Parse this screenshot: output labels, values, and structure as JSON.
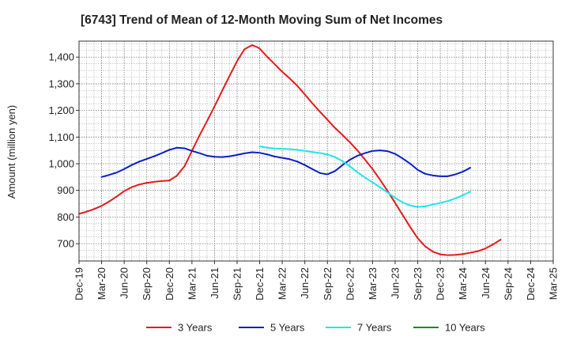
{
  "chart_data": {
    "type": "line",
    "title": "[6743]  Trend of Mean of 12-Month Moving Sum of Net Incomes",
    "ylabel": "Amount (million yen)",
    "xlabel": "",
    "ylim": [
      635,
      1460
    ],
    "yticks": [
      700,
      800,
      900,
      1000,
      1100,
      1200,
      1300,
      1400
    ],
    "ytick_labels": [
      "700",
      "800",
      "900",
      "1,000",
      "1,100",
      "1,200",
      "1,300",
      "1,400"
    ],
    "x_categories": [
      "Dec-19",
      "Mar-20",
      "Jun-20",
      "Sep-20",
      "Dec-20",
      "Mar-21",
      "Jun-21",
      "Sep-21",
      "Dec-21",
      "Mar-22",
      "Jun-22",
      "Sep-22",
      "Dec-22",
      "Mar-23",
      "Jun-23",
      "Sep-23",
      "Dec-23",
      "Mar-24",
      "Jun-24",
      "Sep-24",
      "Dec-24",
      "Mar-25"
    ],
    "grid": true,
    "legend_position": "bottom",
    "series": [
      {
        "name": "3 Years",
        "color": "#e41a1c",
        "values": [
          [
            0,
            812
          ],
          [
            0.33,
            820
          ],
          [
            0.67,
            830
          ],
          [
            1,
            842
          ],
          [
            1.33,
            858
          ],
          [
            1.67,
            877
          ],
          [
            2,
            897
          ],
          [
            2.33,
            912
          ],
          [
            2.67,
            922
          ],
          [
            3,
            928
          ],
          [
            3.33,
            932
          ],
          [
            3.67,
            935
          ],
          [
            4,
            937
          ],
          [
            4.33,
            955
          ],
          [
            4.67,
            990
          ],
          [
            5,
            1048
          ],
          [
            5.33,
            1105
          ],
          [
            5.67,
            1160
          ],
          [
            6,
            1215
          ],
          [
            6.33,
            1272
          ],
          [
            6.67,
            1330
          ],
          [
            7,
            1385
          ],
          [
            7.33,
            1430
          ],
          [
            7.67,
            1445
          ],
          [
            7.9,
            1437
          ],
          [
            8,
            1432
          ],
          [
            8.33,
            1402
          ],
          [
            8.67,
            1373
          ],
          [
            9,
            1345
          ],
          [
            9.33,
            1320
          ],
          [
            9.67,
            1292
          ],
          [
            10,
            1260
          ],
          [
            10.33,
            1227
          ],
          [
            10.67,
            1195
          ],
          [
            11,
            1165
          ],
          [
            11.33,
            1135
          ],
          [
            11.67,
            1108
          ],
          [
            12,
            1080
          ],
          [
            12.33,
            1050
          ],
          [
            12.67,
            1015
          ],
          [
            13,
            980
          ],
          [
            13.33,
            940
          ],
          [
            13.67,
            897
          ],
          [
            14,
            853
          ],
          [
            14.33,
            808
          ],
          [
            14.67,
            762
          ],
          [
            15,
            720
          ],
          [
            15.33,
            690
          ],
          [
            15.67,
            670
          ],
          [
            16,
            660
          ],
          [
            16.33,
            657
          ],
          [
            16.67,
            658
          ],
          [
            17,
            661
          ],
          [
            17.33,
            666
          ],
          [
            17.67,
            672
          ],
          [
            18,
            682
          ],
          [
            18.33,
            697
          ],
          [
            18.67,
            715
          ]
        ]
      },
      {
        "name": "5 Years",
        "color": "#0a1ec8",
        "values": [
          [
            1,
            950
          ],
          [
            1.33,
            958
          ],
          [
            1.67,
            967
          ],
          [
            2,
            980
          ],
          [
            2.33,
            995
          ],
          [
            2.67,
            1008
          ],
          [
            3,
            1018
          ],
          [
            3.33,
            1028
          ],
          [
            3.67,
            1040
          ],
          [
            4,
            1052
          ],
          [
            4.33,
            1060
          ],
          [
            4.67,
            1058
          ],
          [
            5,
            1048
          ],
          [
            5.33,
            1040
          ],
          [
            5.67,
            1030
          ],
          [
            6,
            1026
          ],
          [
            6.33,
            1025
          ],
          [
            6.67,
            1028
          ],
          [
            7,
            1033
          ],
          [
            7.33,
            1039
          ],
          [
            7.67,
            1043
          ],
          [
            8,
            1041
          ],
          [
            8.33,
            1035
          ],
          [
            8.67,
            1027
          ],
          [
            9,
            1022
          ],
          [
            9.33,
            1017
          ],
          [
            9.67,
            1008
          ],
          [
            10,
            995
          ],
          [
            10.33,
            980
          ],
          [
            10.67,
            965
          ],
          [
            11,
            960
          ],
          [
            11.33,
            972
          ],
          [
            11.67,
            995
          ],
          [
            12,
            1015
          ],
          [
            12.33,
            1030
          ],
          [
            12.67,
            1040
          ],
          [
            13,
            1048
          ],
          [
            13.33,
            1050
          ],
          [
            13.67,
            1047
          ],
          [
            14,
            1037
          ],
          [
            14.33,
            1020
          ],
          [
            14.67,
            1000
          ],
          [
            15,
            977
          ],
          [
            15.33,
            962
          ],
          [
            15.67,
            956
          ],
          [
            16,
            953
          ],
          [
            16.33,
            953
          ],
          [
            16.67,
            960
          ],
          [
            17,
            970
          ],
          [
            17.33,
            985
          ]
        ]
      },
      {
        "name": "7 Years",
        "color": "#1ee6e6",
        "values": [
          [
            8,
            1065
          ],
          [
            8.33,
            1060
          ],
          [
            8.67,
            1057
          ],
          [
            9,
            1056
          ],
          [
            9.33,
            1055
          ],
          [
            9.67,
            1052
          ],
          [
            10,
            1048
          ],
          [
            10.33,
            1044
          ],
          [
            10.67,
            1040
          ],
          [
            11,
            1035
          ],
          [
            11.33,
            1025
          ],
          [
            11.67,
            1010
          ],
          [
            12,
            990
          ],
          [
            12.33,
            968
          ],
          [
            12.67,
            948
          ],
          [
            13,
            930
          ],
          [
            13.33,
            912
          ],
          [
            13.67,
            892
          ],
          [
            14,
            872
          ],
          [
            14.33,
            855
          ],
          [
            14.67,
            843
          ],
          [
            15,
            838
          ],
          [
            15.33,
            840
          ],
          [
            15.67,
            847
          ],
          [
            16,
            853
          ],
          [
            16.33,
            860
          ],
          [
            16.67,
            870
          ],
          [
            17,
            882
          ],
          [
            17.33,
            895
          ]
        ]
      },
      {
        "name": "10 Years",
        "color": "#1a8c1a",
        "values": []
      }
    ]
  }
}
